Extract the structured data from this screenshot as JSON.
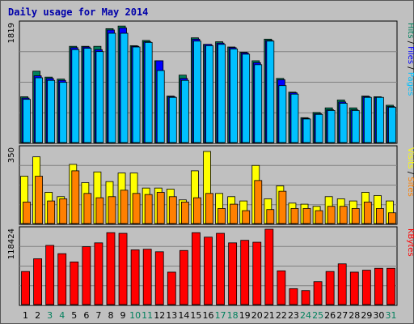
{
  "chart_data": {
    "type": "bar",
    "title": "Daily usage for May 2014",
    "x": [
      "1",
      "2",
      "3",
      "4",
      "5",
      "6",
      "7",
      "8",
      "9",
      "10",
      "11",
      "12",
      "13",
      "14",
      "15",
      "16",
      "17",
      "18",
      "19",
      "20",
      "21",
      "22",
      "23",
      "24",
      "25",
      "26",
      "27",
      "28",
      "29",
      "30",
      "31"
    ],
    "weekend_days": [
      3,
      4,
      10,
      11,
      17,
      18,
      24,
      25,
      31
    ],
    "colors": {
      "hits": "#00805c",
      "files": "#0000ff",
      "pages": "#00c0ff",
      "visits": "#ffff00",
      "sites": "#ff8000",
      "kbytes": "#ff0000",
      "weekday_label": "#000000",
      "weekend_label": "#00805c",
      "panel_bg": "#c0c0c0",
      "grid": "#808080",
      "title": "#0000aa"
    },
    "panels": [
      {
        "id": "hits-files-pages",
        "max_label": "1819",
        "ymax": 1819,
        "side_labels": [
          {
            "text": "Hits",
            "color": "#00805c"
          },
          {
            "text": "Files",
            "color": "#0000ff"
          },
          {
            "text": "Pages",
            "color": "#00c0ff"
          }
        ],
        "series": [
          {
            "name": "Hits",
            "values": [
              700,
              1090,
              1000,
              970,
              1470,
              1470,
              1470,
              1740,
              1780,
              1480,
              1560,
              1250,
              710,
              1030,
              1600,
              1500,
              1540,
              1460,
              1380,
              1250,
              1580,
              980,
              770,
              380,
              460,
              530,
              650,
              530,
              710,
              700,
              570
            ]
          },
          {
            "name": "Files",
            "values": [
              680,
              1020,
              980,
              950,
              1450,
              1460,
              1420,
              1720,
              1750,
              1470,
              1540,
              1250,
              700,
              980,
              1580,
              1500,
              1520,
              1450,
              1370,
              1220,
              1560,
              960,
              760,
              370,
              440,
              500,
              620,
              500,
              700,
              690,
              550
            ]
          },
          {
            "name": "Pages",
            "values": [
              660,
              990,
              950,
              920,
              1420,
              1440,
              1390,
              1670,
              1670,
              1460,
              1530,
              1100,
              690,
              950,
              1550,
              1480,
              1500,
              1430,
              1350,
              1190,
              1550,
              870,
              740,
              360,
              430,
              490,
              600,
              490,
              690,
              690,
              540
            ]
          }
        ]
      },
      {
        "id": "visits-sites",
        "max_label": "350",
        "ymax": 350,
        "side_labels": [
          {
            "text": "Visits",
            "color": "#ffff00"
          },
          {
            "text": "Sites",
            "color": "#ff8000"
          }
        ],
        "series": [
          {
            "name": "Visits",
            "values": [
              220,
              310,
              145,
              125,
              275,
              190,
              240,
              195,
              235,
              235,
              165,
              165,
              160,
              110,
              245,
              335,
              140,
              125,
              105,
              270,
              115,
              175,
              95,
              90,
              80,
              125,
              115,
              105,
              145,
              130,
              105
            ]
          },
          {
            "name": "Sites",
            "values": [
              100,
              220,
              105,
              115,
              245,
              140,
              120,
              125,
              155,
              140,
              135,
              145,
              125,
              100,
              120,
              140,
              70,
              90,
              60,
              200,
              65,
              150,
              70,
              70,
              60,
              80,
              80,
              70,
              100,
              70,
              50
            ]
          }
        ]
      },
      {
        "id": "kbytes",
        "max_label": "118424",
        "ymax": 118424,
        "side_labels": [
          {
            "text": "KBytes",
            "color": "#ff0000"
          }
        ],
        "series": [
          {
            "name": "KBytes",
            "values": [
              52000,
              72000,
              93000,
              80000,
              67000,
              91000,
              97000,
              113000,
              112000,
              86000,
              87000,
              83000,
              51000,
              85000,
              113000,
              106000,
              112000,
              97000,
              101000,
              98000,
              118424,
              53000,
              25000,
              22000,
              36000,
              52000,
              64000,
              51000,
              54000,
              57000,
              57000
            ]
          }
        ]
      }
    ]
  }
}
